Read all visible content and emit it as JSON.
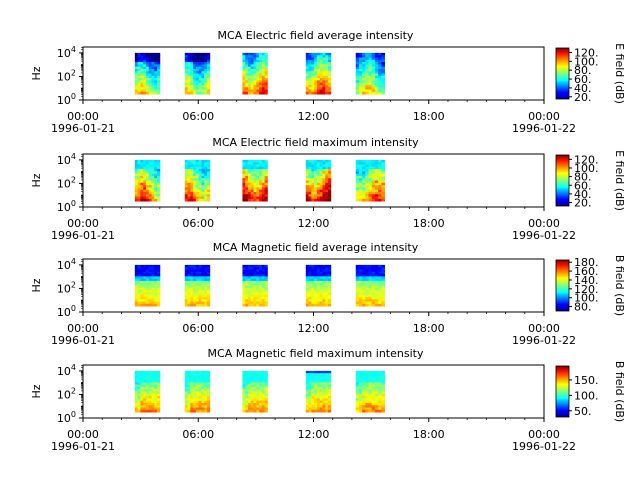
{
  "figure": {
    "x_ticks": [
      "00:00",
      "06:00",
      "12:00",
      "18:00",
      "00:00"
    ],
    "x_dates": [
      "1996-01-21",
      "",
      "",
      "",
      "1996-01-22"
    ]
  },
  "chart_data": [
    {
      "type": "heatmap",
      "title": "MCA  Electric field average intensity",
      "ylabel": "Hz",
      "y_ticks": [
        "10",
        "10",
        "10"
      ],
      "y_exps": [
        "0",
        "2",
        "4"
      ],
      "colorbar_label": "E field (dB)",
      "colorbar_ticks": [
        "20.",
        "40.",
        "60.",
        "80.",
        "100.",
        "120."
      ],
      "colorbar_range": [
        15,
        130
      ],
      "y_range_log10": [
        0,
        4.5
      ],
      "x_range_hours": [
        0,
        24
      ],
      "segments_hours": [
        [
          2.7,
          4.0
        ],
        [
          5.3,
          6.6
        ],
        [
          8.3,
          9.6
        ],
        [
          11.6,
          12.9
        ],
        [
          14.2,
          15.7
        ]
      ],
      "y_coverage_log10": [
        0.5,
        4.0
      ],
      "level": "electric-average"
    },
    {
      "type": "heatmap",
      "title": "MCA  Electric field maximum intensity",
      "ylabel": "Hz",
      "y_ticks": [
        "10",
        "10",
        "10"
      ],
      "y_exps": [
        "0",
        "2",
        "4"
      ],
      "colorbar_label": "E field (dB)",
      "colorbar_ticks": [
        "20.",
        "40.",
        "60.",
        "80.",
        "100.",
        "120."
      ],
      "colorbar_range": [
        12,
        130
      ],
      "y_range_log10": [
        0,
        4.5
      ],
      "x_range_hours": [
        0,
        24
      ],
      "segments_hours": [
        [
          2.7,
          4.0
        ],
        [
          5.3,
          6.6
        ],
        [
          8.3,
          9.6
        ],
        [
          11.6,
          12.9
        ],
        [
          14.2,
          15.7
        ]
      ],
      "y_coverage_log10": [
        0.5,
        4.0
      ],
      "level": "electric-maximum"
    },
    {
      "type": "heatmap",
      "title": "MCA  Magnetic field average intensity",
      "ylabel": "Hz",
      "y_ticks": [
        "10",
        "10",
        "10"
      ],
      "y_exps": [
        "0",
        "2",
        "4"
      ],
      "colorbar_label": "B field (dB)",
      "colorbar_ticks": [
        "80.",
        "100.",
        "120.",
        "140.",
        "160.",
        "180."
      ],
      "colorbar_range": [
        70,
        185
      ],
      "y_range_log10": [
        0,
        4.5
      ],
      "x_range_hours": [
        0,
        24
      ],
      "segments_hours": [
        [
          2.7,
          4.0
        ],
        [
          5.3,
          6.6
        ],
        [
          8.3,
          9.6
        ],
        [
          11.6,
          12.9
        ],
        [
          14.2,
          15.7
        ]
      ],
      "y_coverage_log10": [
        0.5,
        4.0
      ],
      "level": "magnetic-average"
    },
    {
      "type": "heatmap",
      "title": "MCA  Magnetic field maximum intensity",
      "ylabel": "Hz",
      "y_ticks": [
        "10",
        "10",
        "10"
      ],
      "y_exps": [
        "0",
        "2",
        "4"
      ],
      "colorbar_label": "B field (dB)",
      "colorbar_ticks": [
        "50.",
        "100.",
        "150."
      ],
      "colorbar_range": [
        30,
        195
      ],
      "y_range_log10": [
        0,
        4.5
      ],
      "x_range_hours": [
        0,
        24
      ],
      "segments_hours": [
        [
          2.7,
          4.0
        ],
        [
          5.3,
          6.6
        ],
        [
          8.3,
          9.6
        ],
        [
          11.6,
          12.9
        ],
        [
          14.2,
          15.7
        ]
      ],
      "y_coverage_log10": [
        0.5,
        4.0
      ],
      "level": "magnetic-maximum"
    }
  ]
}
